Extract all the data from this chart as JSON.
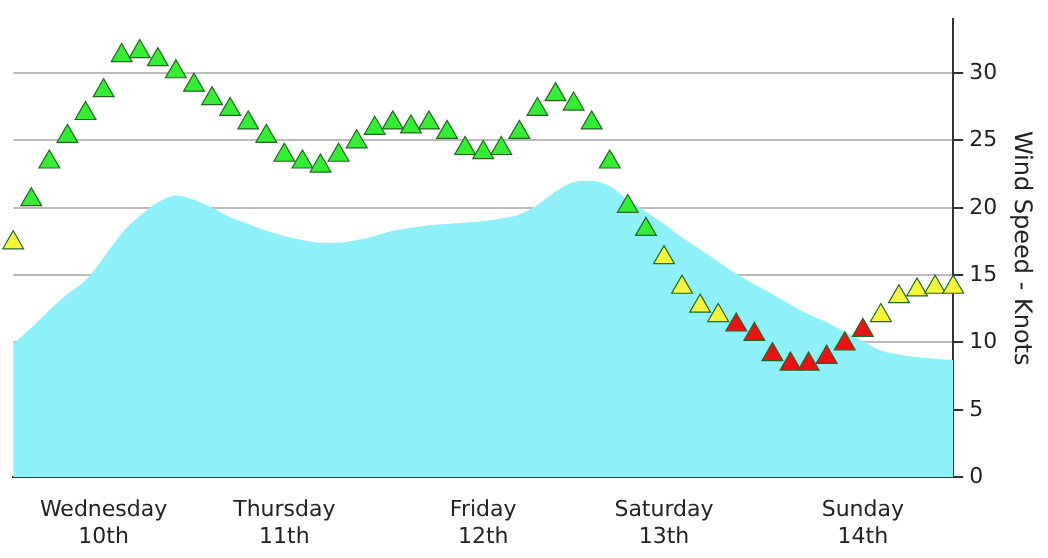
{
  "chart_data": {
    "type": "area",
    "ylabel": "Wind Speed - Knots",
    "categories": [
      null,
      null,
      null,
      null,
      null,
      "Wednesday\n10th",
      null,
      null,
      null,
      null,
      null,
      null,
      null,
      null,
      null,
      "Thursday\n11th",
      null,
      null,
      null,
      null,
      null,
      null,
      null,
      null,
      null,
      null,
      "Friday\n12th",
      null,
      null,
      null,
      null,
      null,
      null,
      null,
      null,
      null,
      "Saturday\n13th",
      null,
      null,
      null,
      null,
      null,
      null,
      null,
      null,
      null,
      null,
      "Sunday\n14th",
      null,
      null,
      null,
      null,
      null
    ],
    "ylim": [
      0,
      34
    ],
    "yticks": [
      0,
      5,
      10,
      15,
      20,
      25,
      30
    ],
    "grid": "y",
    "legend": false,
    "series": [
      {
        "color": "#8ef0f8",
        "values": [
          9.9,
          11.1,
          12.4,
          13.6,
          14.6,
          16.3,
          18.1,
          19.4,
          20.4,
          20.9,
          20.6,
          20,
          19.3,
          18.8,
          18.3,
          17.9,
          17.6,
          17.4,
          17.4,
          17.6,
          17.9,
          18.3,
          18.5,
          18.7,
          18.8,
          18.9,
          19,
          19.2,
          19.5,
          20.2,
          21.2,
          21.9,
          22,
          21.6,
          20.6,
          19.7,
          18.8,
          17.8,
          16.9,
          16,
          15.1,
          14.3,
          13.6,
          12.8,
          12.1,
          11.5,
          10.8,
          10.1,
          9.4,
          9.1,
          8.9,
          8.8,
          8.7
        ]
      },
      {
        "type": "scatter",
        "marker": "triangle",
        "values": [
          17.4,
          20.6,
          23.4,
          25.3,
          27,
          28.7,
          31.3,
          31.6,
          31,
          30.1,
          29.1,
          28.1,
          27.3,
          26.3,
          25.3,
          23.9,
          23.4,
          23.1,
          23.9,
          24.9,
          25.9,
          26.3,
          26,
          26.3,
          25.6,
          24.4,
          24.1,
          24.4,
          25.6,
          27.3,
          28.4,
          27.7,
          26.3,
          23.4,
          20.1,
          18.4,
          16.3,
          14.1,
          12.7,
          12,
          11.3,
          10.6,
          9.1,
          8.4,
          8.4,
          8.9,
          9.9,
          10.9,
          12,
          13.4,
          13.9,
          14.1,
          14.1
        ],
        "colors": [
          "#f5f53a",
          "#33ee33",
          "#33ee33",
          "#33ee33",
          "#33ee33",
          "#33ee33",
          "#33ee33",
          "#33ee33",
          "#33ee33",
          "#33ee33",
          "#33ee33",
          "#33ee33",
          "#33ee33",
          "#33ee33",
          "#33ee33",
          "#33ee33",
          "#33ee33",
          "#33ee33",
          "#33ee33",
          "#33ee33",
          "#33ee33",
          "#33ee33",
          "#33ee33",
          "#33ee33",
          "#33ee33",
          "#33ee33",
          "#33ee33",
          "#33ee33",
          "#33ee33",
          "#33ee33",
          "#33ee33",
          "#33ee33",
          "#33ee33",
          "#33ee33",
          "#33ee33",
          "#33ee33",
          "#f5f53a",
          "#f5f53a",
          "#f5f53a",
          "#f5f53a",
          "#ee1111",
          "#ee1111",
          "#ee1111",
          "#ee1111",
          "#ee1111",
          "#ee1111",
          "#ee1111",
          "#ee1111",
          "#f5f53a",
          "#f5f53a",
          "#f5f53a",
          "#f5f53a",
          "#f5f53a"
        ]
      }
    ]
  }
}
